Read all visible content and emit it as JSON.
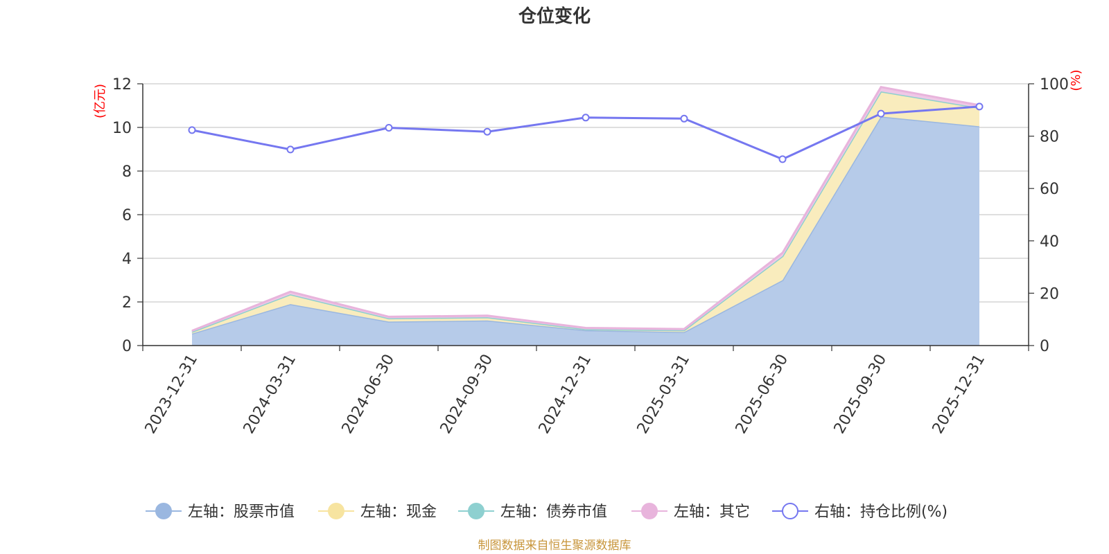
{
  "chart_data": {
    "type": "area",
    "title": "仓位变化",
    "left_unit": "(亿元)",
    "right_unit": "(%)",
    "categories": [
      "2023-12-31",
      "2024-03-31",
      "2024-06-30",
      "2024-09-30",
      "2024-12-31",
      "2025-03-31",
      "2025-06-30",
      "2025-09-30",
      "2025-12-31"
    ],
    "left_axis": {
      "min": 0,
      "max": 12,
      "ticks": [
        "0",
        "2",
        "4",
        "6",
        "8",
        "10",
        "12"
      ]
    },
    "right_axis": {
      "min": 0,
      "max": 100,
      "ticks": [
        "0",
        "20",
        "40",
        "60",
        "80",
        "100"
      ]
    },
    "stacked_series": [
      {
        "name": "左轴：股票市值",
        "color": "#9ab7e0",
        "fill": "#b6cbe9",
        "values": [
          0.55,
          1.9,
          1.1,
          1.15,
          0.7,
          0.62,
          3.0,
          10.5,
          10.05
        ]
      },
      {
        "name": "左轴：现金",
        "color": "#f7e4a0",
        "fill": "#f9ecbd",
        "values": [
          0.08,
          0.45,
          0.15,
          0.15,
          0.05,
          0.08,
          1.1,
          1.15,
          0.85
        ]
      },
      {
        "name": "左轴：债券市值",
        "color": "#8ed0d0",
        "fill": "#a8dcdc",
        "values": [
          0,
          0,
          0,
          0,
          0,
          0,
          0,
          0,
          0
        ]
      },
      {
        "name": "左轴：其它",
        "color": "#e8b4dc",
        "fill": "#efc8e6",
        "values": [
          0.05,
          0.12,
          0.07,
          0.07,
          0.06,
          0.06,
          0.15,
          0.2,
          0.12
        ]
      }
    ],
    "line_series": {
      "name": "右轴：持仓比例(%)",
      "color": "#7577f0",
      "values": [
        82.3,
        74.9,
        83.2,
        81.7,
        87.1,
        86.7,
        71.2,
        88.6,
        91.3
      ]
    },
    "grid": true,
    "legend_position": "bottom"
  },
  "source": "制图数据来自恒生聚源数据库"
}
